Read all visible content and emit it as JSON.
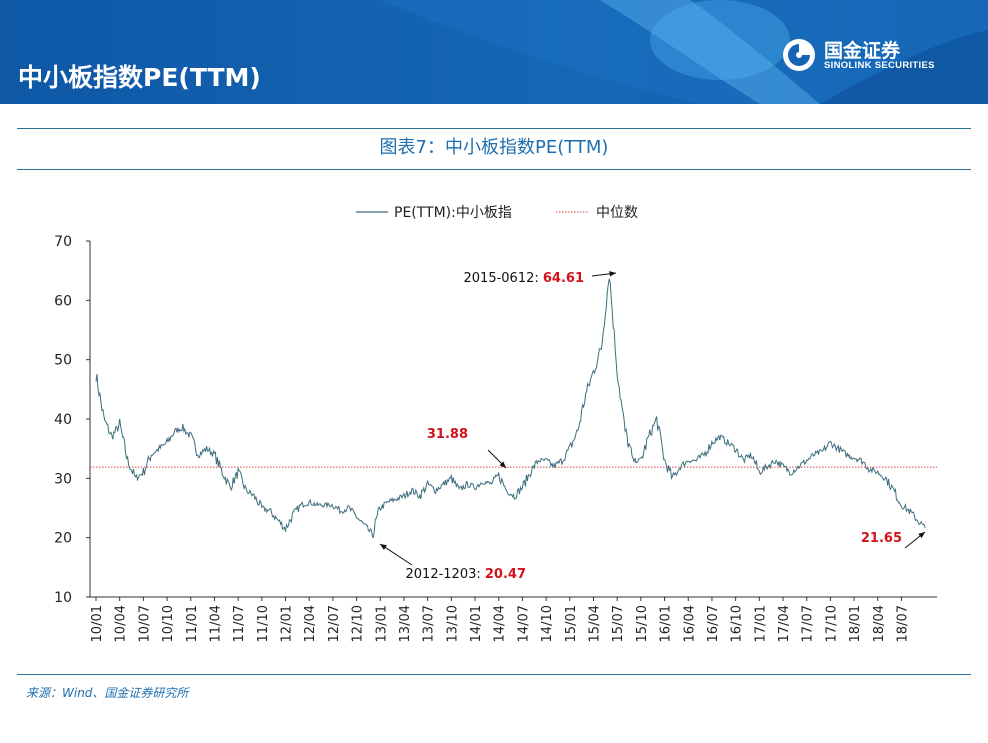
{
  "header": {
    "title": "中小板指数PE(TTM)",
    "logo_cn": "国金证券",
    "logo_en": "SINOLINK SECURITIES",
    "bg_color": "#1565b5",
    "accent_color": "#4aa6e6"
  },
  "figure_title": "图表7：中小板指数PE(TTM)",
  "source": "来源：Wind、国金证券研究所",
  "chart_data": {
    "type": "line",
    "title": "",
    "xlabel": "",
    "ylabel": "",
    "ylim": [
      10,
      70
    ],
    "yticks": [
      10,
      20,
      30,
      40,
      50,
      60,
      70
    ],
    "xticks": [
      "10/01",
      "10/04",
      "10/07",
      "10/10",
      "11/01",
      "11/04",
      "11/07",
      "11/10",
      "12/01",
      "12/04",
      "12/07",
      "12/10",
      "13/01",
      "13/04",
      "13/07",
      "13/10",
      "14/01",
      "14/04",
      "14/07",
      "14/10",
      "15/01",
      "15/04",
      "15/07",
      "15/10",
      "16/01",
      "16/04",
      "16/07",
      "16/10",
      "17/01",
      "17/04",
      "17/07",
      "17/10",
      "18/01",
      "18/04",
      "18/07"
    ],
    "grid": false,
    "legend_position": "top",
    "series": [
      {
        "name": "PE(TTM):中小板指",
        "color": "#3d6e7e",
        "x": [
          "2010-01",
          "2010-02",
          "2010-03",
          "2010-04",
          "2010-05",
          "2010-06",
          "2010-07",
          "2010-08",
          "2010-09",
          "2010-10",
          "2010-11",
          "2010-12",
          "2011-01",
          "2011-02",
          "2011-03",
          "2011-04",
          "2011-05",
          "2011-06",
          "2011-07",
          "2011-08",
          "2011-09",
          "2011-10",
          "2011-11",
          "2011-12",
          "2012-01",
          "2012-02",
          "2012-03",
          "2012-04",
          "2012-05",
          "2012-06",
          "2012-07",
          "2012-08",
          "2012-09",
          "2012-10",
          "2012-11",
          "2012-12",
          "2013-01",
          "2013-02",
          "2013-03",
          "2013-04",
          "2013-05",
          "2013-06",
          "2013-07",
          "2013-08",
          "2013-09",
          "2013-10",
          "2013-11",
          "2013-12",
          "2014-01",
          "2014-02",
          "2014-03",
          "2014-04",
          "2014-05",
          "2014-06",
          "2014-07",
          "2014-08",
          "2014-09",
          "2014-10",
          "2014-11",
          "2014-12",
          "2015-01",
          "2015-02",
          "2015-03",
          "2015-04",
          "2015-05",
          "2015-06",
          "2015-07",
          "2015-08",
          "2015-09",
          "2015-10",
          "2015-11",
          "2015-12",
          "2016-01",
          "2016-02",
          "2016-03",
          "2016-04",
          "2016-05",
          "2016-06",
          "2016-07",
          "2016-08",
          "2016-09",
          "2016-10",
          "2016-11",
          "2016-12",
          "2017-01",
          "2017-02",
          "2017-03",
          "2017-04",
          "2017-05",
          "2017-06",
          "2017-07",
          "2017-08",
          "2017-09",
          "2017-10",
          "2017-11",
          "2017-12",
          "2018-01",
          "2018-02",
          "2018-03",
          "2018-04",
          "2018-05",
          "2018-06",
          "2018-07",
          "2018-08",
          "2018-09",
          "2018-10"
        ],
        "values": [
          47.5,
          40,
          37,
          39,
          33,
          30,
          31,
          34,
          35,
          36,
          38,
          38.5,
          37,
          34,
          35,
          34,
          31,
          28.5,
          31,
          28,
          27,
          25,
          24.5,
          23,
          21.5,
          24,
          25.5,
          26,
          25.5,
          25.5,
          25.5,
          24.5,
          25,
          23.5,
          22,
          20.5,
          25,
          26,
          26.5,
          27,
          28,
          27,
          29,
          28,
          29,
          30,
          28,
          29,
          28.5,
          29.5,
          29,
          30.5,
          28,
          27,
          28.5,
          31,
          33,
          33,
          32,
          33,
          35,
          38,
          44,
          48,
          52,
          64.6,
          48,
          38,
          33,
          33,
          37,
          40,
          33,
          30,
          32,
          33,
          33,
          34,
          36,
          37,
          36,
          35,
          33,
          34,
          31,
          32,
          33,
          32,
          31,
          32,
          33,
          34,
          34.5,
          36,
          35,
          34,
          33.5,
          33,
          31.5,
          31,
          30,
          28,
          25.5,
          24.5,
          23,
          21.65
        ]
      },
      {
        "name": "中位数",
        "color": "#d94040",
        "value": 31.88
      }
    ],
    "annotations": [
      {
        "label": "2015-0612: ",
        "value": "64.61",
        "x": "2015-06",
        "y": 64.61
      },
      {
        "label": "",
        "value": "31.88",
        "x": "2014-05",
        "y": 31.88
      },
      {
        "label": "2012-1203: ",
        "value": "20.47",
        "x": "2012-12",
        "y": 20.47
      },
      {
        "label": "",
        "value": "21.65",
        "x": "2018-10",
        "y": 21.65
      }
    ]
  }
}
